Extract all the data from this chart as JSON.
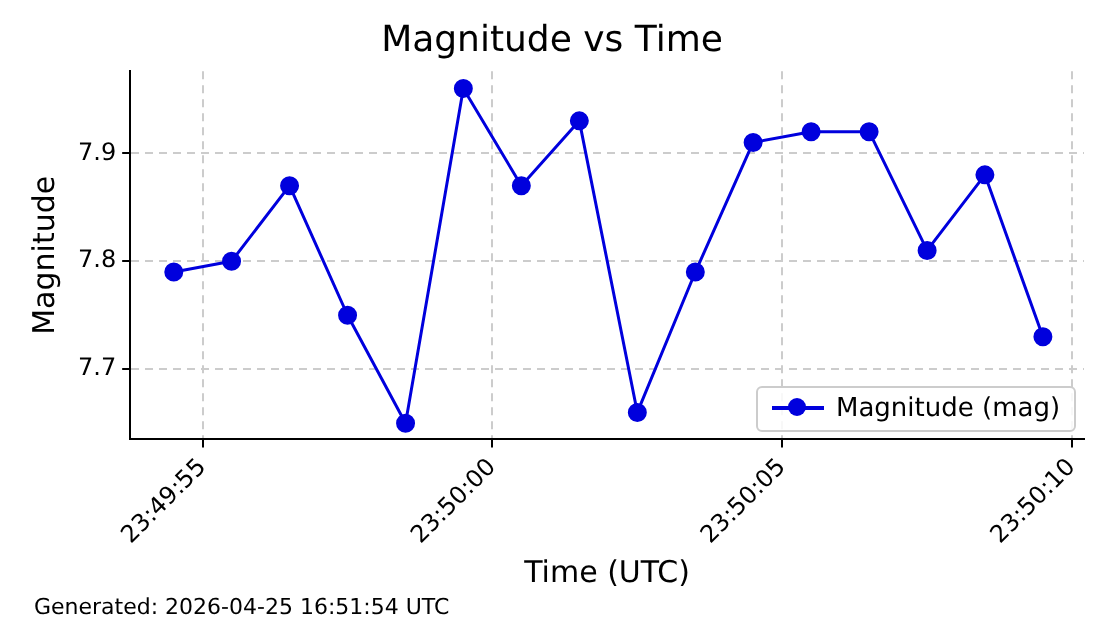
{
  "chart_data": {
    "type": "line",
    "title": "Magnitude vs Time",
    "xlabel": "Time (UTC)",
    "ylabel": "Magnitude",
    "x": [
      23.831806,
      23.832083,
      23.832361,
      23.832639,
      23.832917,
      23.833194,
      23.833472,
      23.83375,
      23.834028,
      23.834306,
      23.834583,
      23.834861,
      23.835139,
      23.835417,
      23.835694,
      23.835972
    ],
    "series": [
      {
        "name": "Magnitude (mag)",
        "color": "#0000dd",
        "values": [
          7.79,
          7.8,
          7.87,
          7.75,
          7.65,
          7.96,
          7.87,
          7.93,
          7.66,
          7.79,
          7.91,
          7.92,
          7.92,
          7.81,
          7.88,
          7.73
        ]
      }
    ],
    "xlim": [
      23.831597,
      23.836169
    ],
    "xticks": [
      {
        "value": 23.831944,
        "label": "23:49:55"
      },
      {
        "value": 23.833333,
        "label": "23:50:00"
      },
      {
        "value": 23.834722,
        "label": "23:50:05"
      },
      {
        "value": 23.836111,
        "label": "23:50:10"
      }
    ],
    "ylim": [
      7.635,
      7.976
    ],
    "yticks": [
      7.7,
      7.8,
      7.9
    ],
    "grid": true,
    "legend": "bottom right",
    "marker": "circle",
    "line_style": "solid",
    "annotations": [
      "Generated: 2026-04-25 16:51:54 UTC"
    ]
  }
}
